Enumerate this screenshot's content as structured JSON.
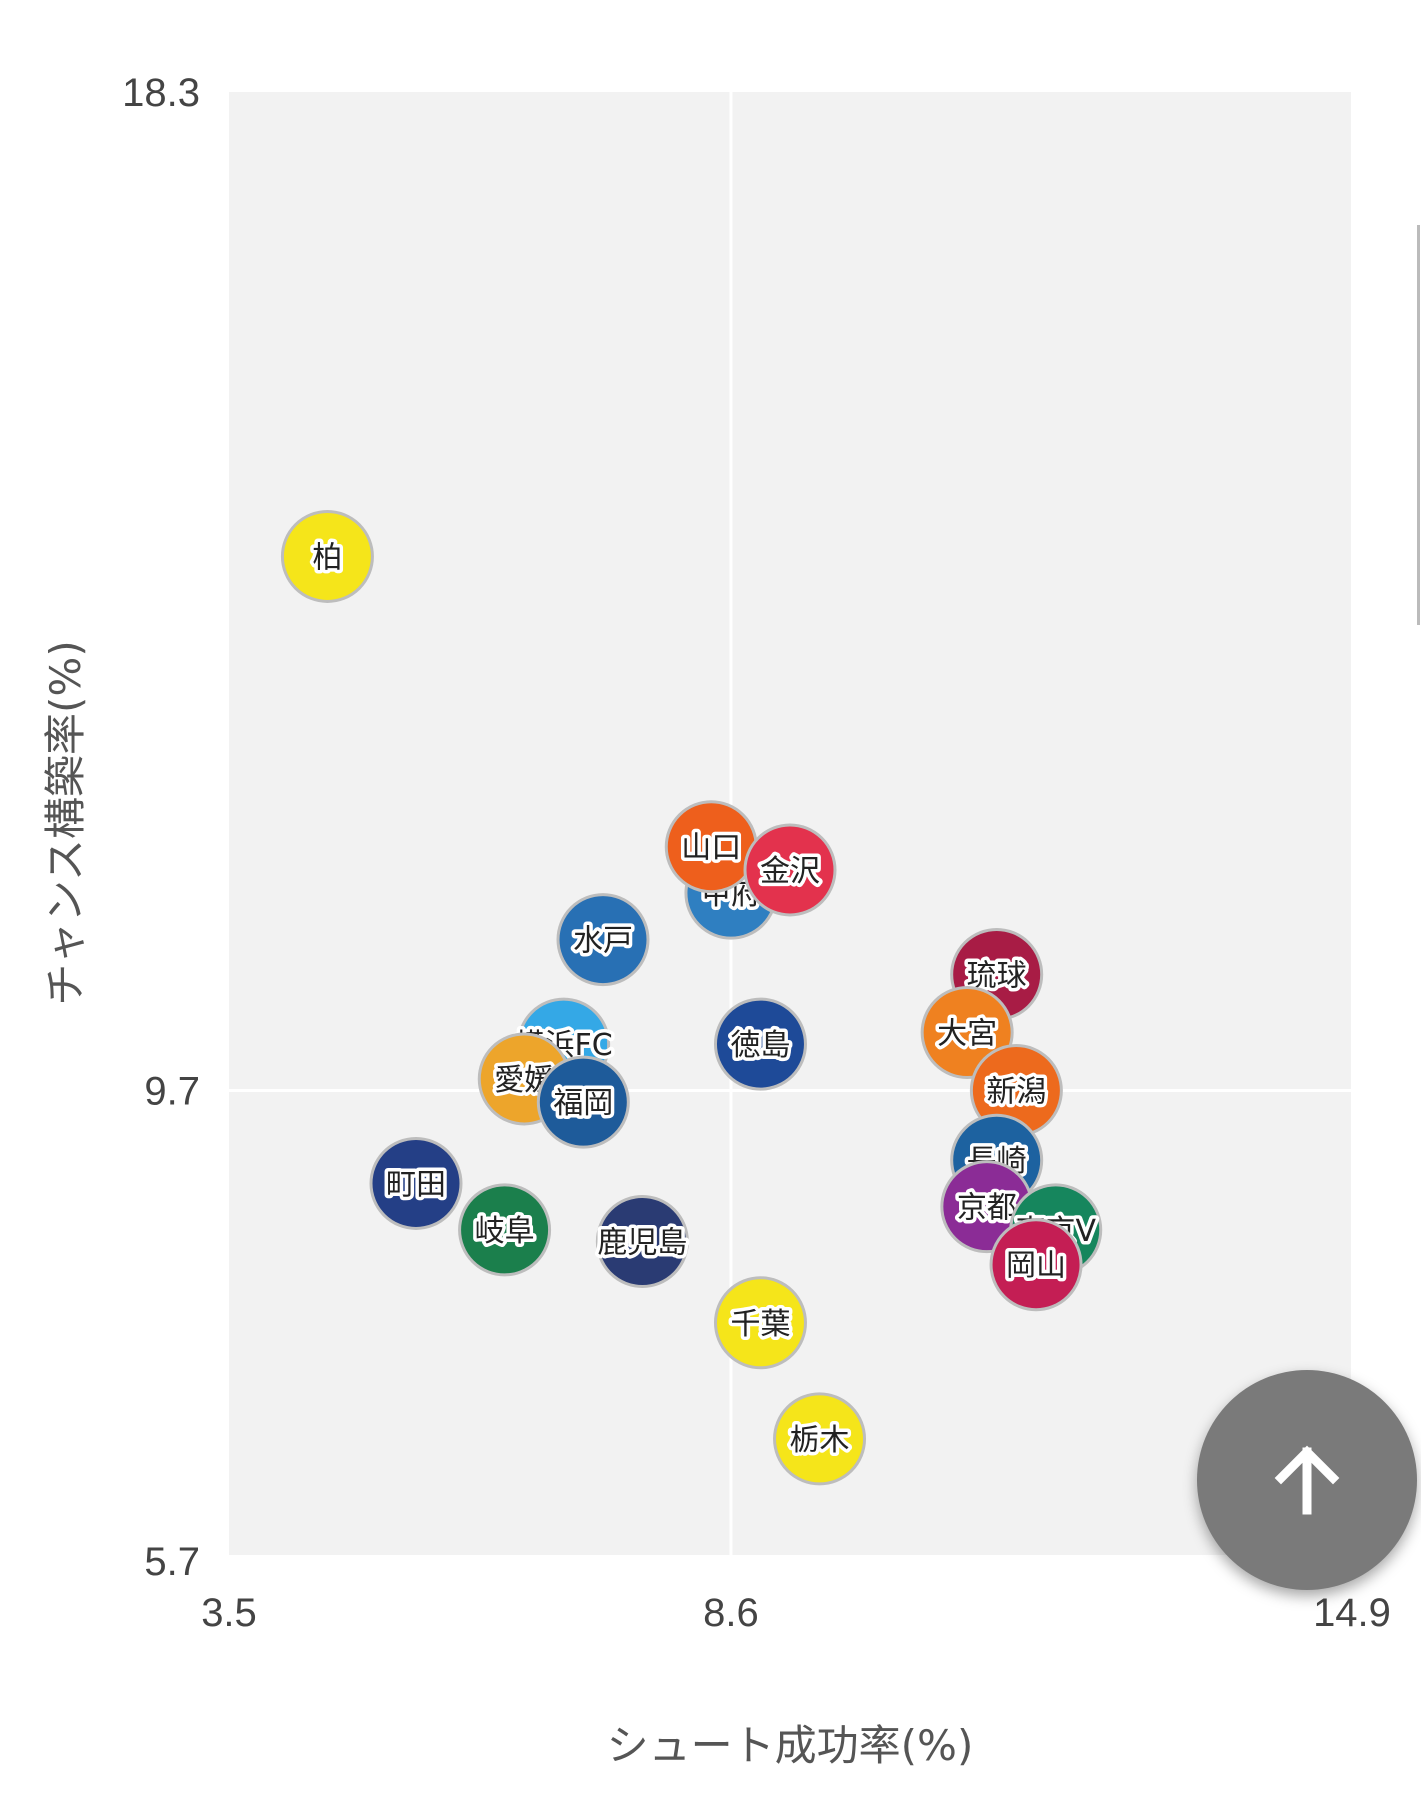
{
  "chart_data": {
    "type": "scatter",
    "xlabel": "シュート成功率(%)",
    "ylabel": "チャンス構築率(%)",
    "xlim": [
      3.5,
      14.9
    ],
    "ylim": [
      5.7,
      18.3
    ],
    "x_ticks": [
      "3.5",
      "8.6",
      "14.9"
    ],
    "y_ticks": [
      "18.3",
      "9.7",
      "5.7"
    ],
    "reference_lines": {
      "x": 8.6,
      "y": 9.7
    },
    "grid": false,
    "points": [
      {
        "label": "柏",
        "x": 4.5,
        "y": 14.3,
        "color": "#f5e51a"
      },
      {
        "label": "甲府",
        "x": 8.6,
        "y": 11.4,
        "color": "#2f7fc1"
      },
      {
        "label": "山口",
        "x": 8.4,
        "y": 11.8,
        "color": "#ee5f1c"
      },
      {
        "label": "金沢",
        "x": 9.2,
        "y": 11.6,
        "color": "#e3324d"
      },
      {
        "label": "水戸",
        "x": 7.3,
        "y": 11.0,
        "color": "#2870b4"
      },
      {
        "label": "琉球",
        "x": 11.3,
        "y": 10.7,
        "color": "#a81c45"
      },
      {
        "label": "横浜FC",
        "x": 6.9,
        "y": 10.1,
        "color": "#34a8e6"
      },
      {
        "label": "愛媛",
        "x": 6.5,
        "y": 9.8,
        "color": "#eda52b"
      },
      {
        "label": "福岡",
        "x": 7.1,
        "y": 9.6,
        "color": "#1e5b9a"
      },
      {
        "label": "徳島",
        "x": 8.9,
        "y": 10.1,
        "color": "#1e4a98"
      },
      {
        "label": "大宮",
        "x": 11.0,
        "y": 10.2,
        "color": "#ef8120"
      },
      {
        "label": "新潟",
        "x": 11.5,
        "y": 9.7,
        "color": "#ed6a1d"
      },
      {
        "label": "長崎",
        "x": 11.3,
        "y": 9.1,
        "color": "#1d62a0"
      },
      {
        "label": "京都",
        "x": 11.2,
        "y": 8.7,
        "color": "#8b2c96"
      },
      {
        "label": "東京V",
        "x": 11.9,
        "y": 8.5,
        "color": "#16865d"
      },
      {
        "label": "岡山",
        "x": 11.7,
        "y": 8.2,
        "color": "#c41e54"
      },
      {
        "label": "町田",
        "x": 5.4,
        "y": 8.9,
        "color": "#243f86"
      },
      {
        "label": "岐阜",
        "x": 6.3,
        "y": 8.5,
        "color": "#1b7f4c"
      },
      {
        "label": "鹿児島",
        "x": 7.7,
        "y": 8.4,
        "color": "#2a3b73"
      },
      {
        "label": "千葉",
        "x": 8.9,
        "y": 7.7,
        "color": "#f5e51a"
      },
      {
        "label": "栃木",
        "x": 9.5,
        "y": 6.7,
        "color": "#f5e51a"
      }
    ]
  },
  "fab": {
    "icon": "arrow-up-icon"
  }
}
